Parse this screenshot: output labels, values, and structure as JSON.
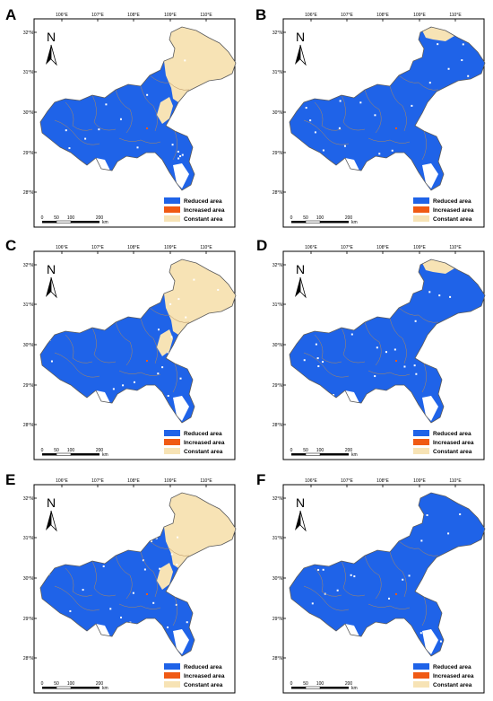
{
  "figure": {
    "panels": [
      {
        "letter": "A",
        "variant": "A"
      },
      {
        "letter": "B",
        "variant": "B"
      },
      {
        "letter": "C",
        "variant": "C"
      },
      {
        "letter": "D",
        "variant": "D"
      },
      {
        "letter": "E",
        "variant": "E"
      },
      {
        "letter": "F",
        "variant": "F"
      }
    ]
  },
  "map": {
    "north_label": "N",
    "lon_ticks": [
      "106°E",
      "107°E",
      "108°E",
      "109°E",
      "110°E"
    ],
    "lat_ticks": [
      "32°N",
      "31°N",
      "30°N",
      "29°N",
      "28°N"
    ],
    "scalebar": {
      "labels": [
        "0",
        "50",
        "100",
        "200"
      ],
      "unit": "km"
    },
    "legend": [
      {
        "label": "Reduced area",
        "color": "#1f63e8"
      },
      {
        "label": "Increased area",
        "color": "#f05a14"
      },
      {
        "label": "Constant area",
        "color": "#f7e3b5"
      }
    ]
  }
}
